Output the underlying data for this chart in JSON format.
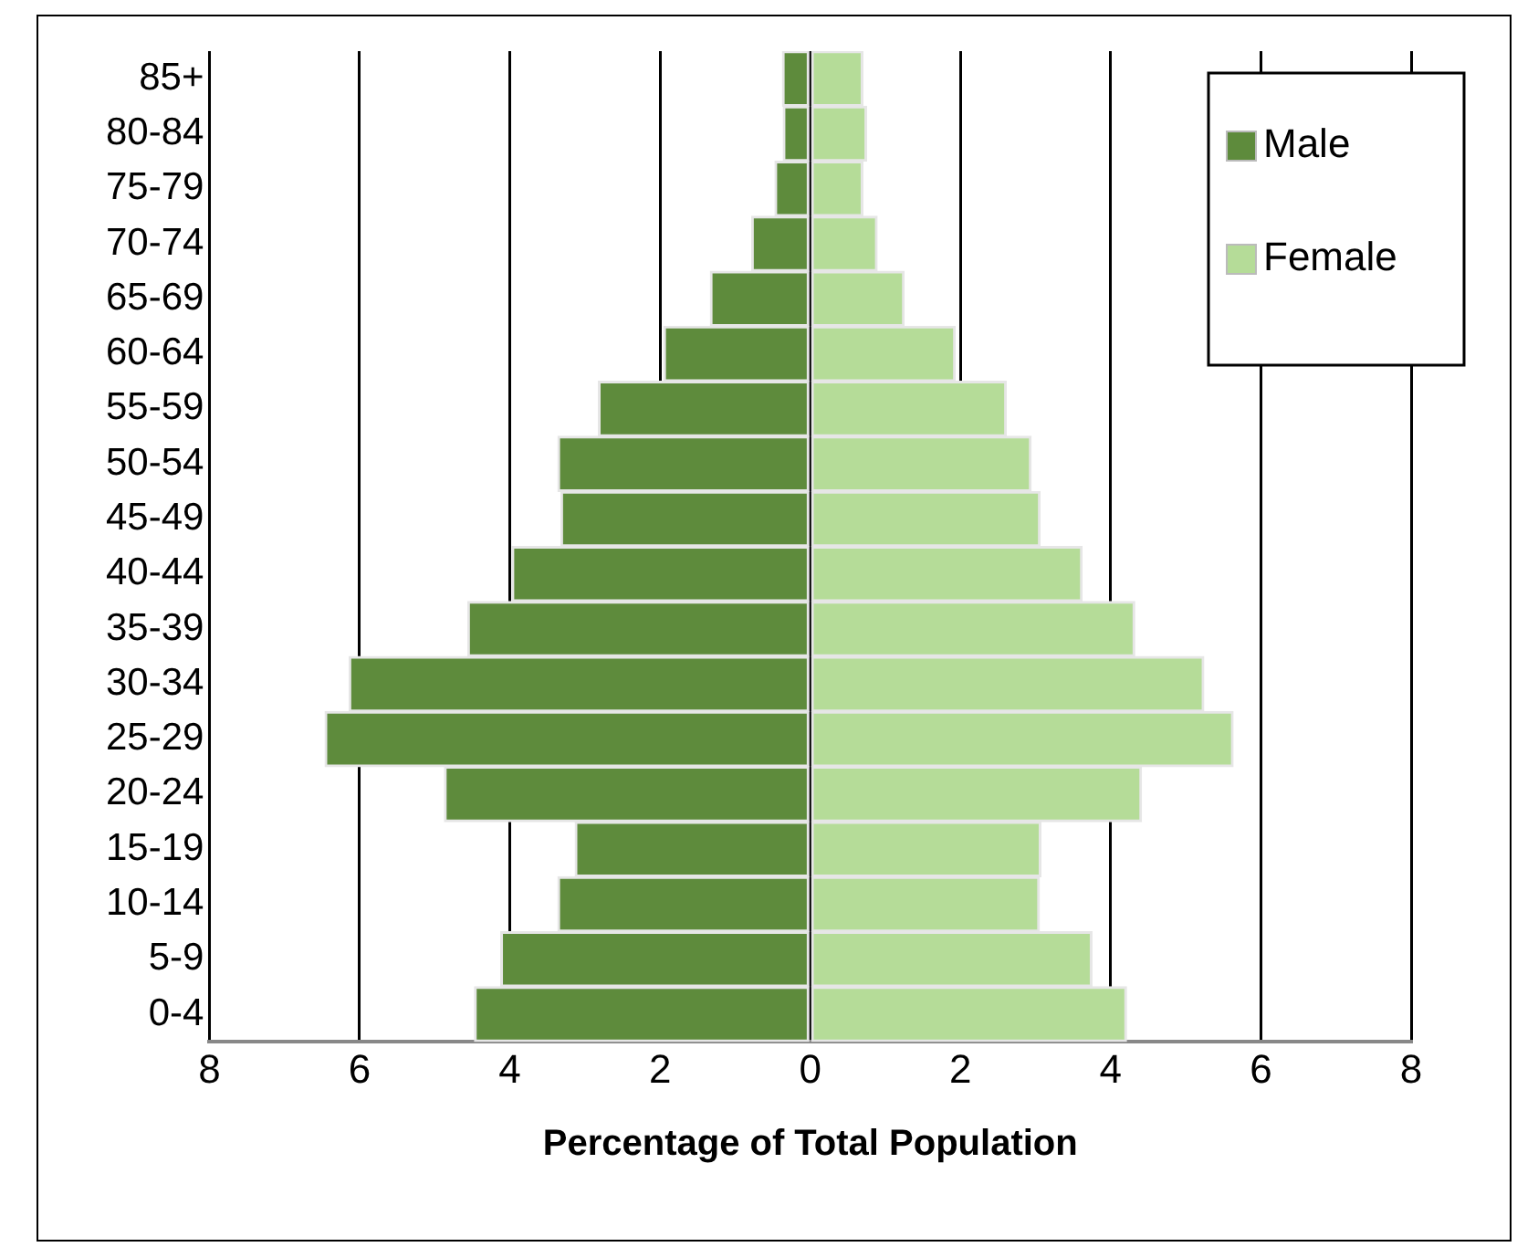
{
  "chart_data": {
    "type": "bar",
    "orientation": "horizontal",
    "stacked": true,
    "categories": [
      "85+",
      "80-84",
      "75-79",
      "70-74",
      "65-69",
      "60-64",
      "55-59",
      "50-54",
      "45-49",
      "40-44",
      "35-39",
      "30-34",
      "25-29",
      "20-24",
      "15-19",
      "10-14",
      "5-9",
      "0-4"
    ],
    "series": [
      {
        "name": "Male",
        "color": "#5e8b3c",
        "values": [
          -0.37,
          -0.36,
          -0.47,
          -0.78,
          -1.33,
          -1.95,
          -2.82,
          -3.36,
          -3.32,
          -3.97,
          -4.56,
          -6.14,
          -6.46,
          -4.87,
          -3.13,
          -3.36,
          -4.12,
          -4.47
        ]
      },
      {
        "name": "Female",
        "color": "#b5dc98",
        "values": [
          0.7,
          0.75,
          0.7,
          0.89,
          1.25,
          1.93,
          2.61,
          2.94,
          3.06,
          3.62,
          4.32,
          5.24,
          5.63,
          4.41,
          3.07,
          3.05,
          3.75,
          4.21
        ]
      }
    ],
    "xlim": [
      -8,
      8
    ],
    "xticks": [
      {
        "value": -8,
        "label": "8"
      },
      {
        "value": -6,
        "label": "6"
      },
      {
        "value": -4,
        "label": "4"
      },
      {
        "value": -2,
        "label": "2"
      },
      0,
      2,
      4,
      6,
      8
    ],
    "xlabel": "Percentage of Total Population",
    "grid": "x",
    "legend": "top right"
  }
}
